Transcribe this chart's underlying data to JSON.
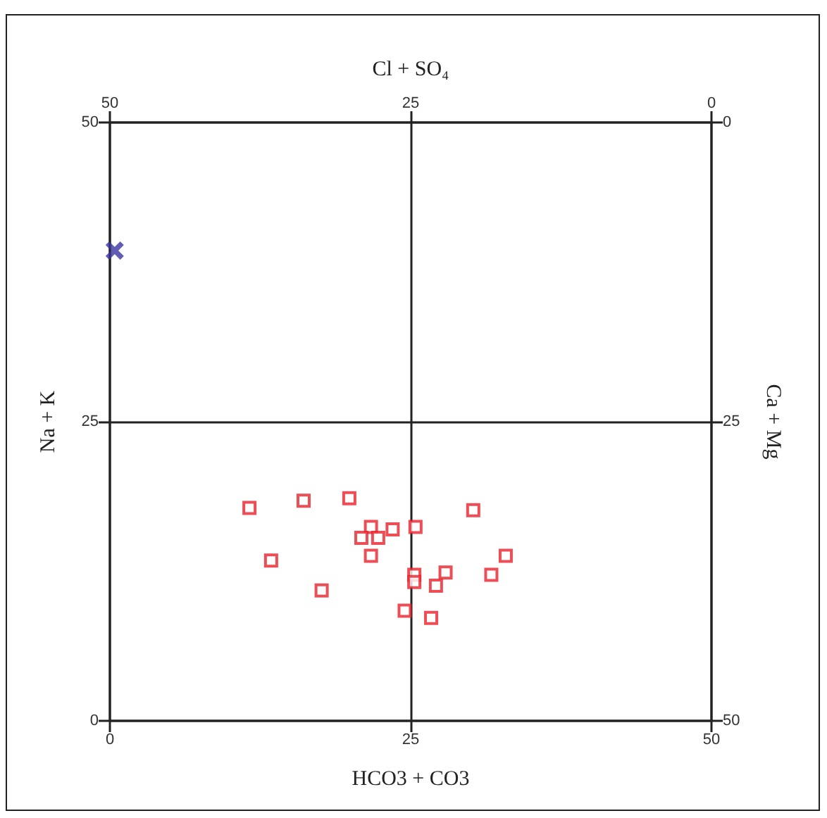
{
  "chart_data": {
    "type": "scatter",
    "xlabel": "HCO3 + CO3",
    "ylabel": "Na + K",
    "x2label": "Cl + SO₄",
    "y2label": "Ca + Mg",
    "xlim": [
      0,
      50
    ],
    "xticks": [
      0,
      25,
      50
    ],
    "ylim": [
      0,
      50
    ],
    "yticks": [
      0,
      25,
      50
    ],
    "x2lim": [
      50,
      0
    ],
    "x2ticks": [
      50,
      25,
      0
    ],
    "y2lim": [
      50,
      0
    ],
    "y2ticks": [
      50,
      25,
      0
    ],
    "grid": true,
    "series": [
      {
        "color": "#e8202a",
        "marker": "square",
        "x": [
          11.6,
          16.1,
          19.9,
          30.2,
          21.7,
          20.9,
          22.3,
          23.5,
          25.4,
          13.4,
          21.7,
          32.9,
          25.3,
          25.3,
          27.9,
          27.1,
          31.7,
          17.6,
          24.5,
          26.7
        ],
        "values": [
          17.8,
          18.4,
          18.6,
          17.6,
          16.2,
          15.3,
          15.3,
          16.0,
          16.2,
          13.4,
          13.8,
          13.8,
          12.2,
          11.6,
          12.4,
          11.3,
          12.2,
          10.9,
          9.2,
          8.6
        ]
      },
      {
        "color": "#3a35a0",
        "marker": "cross",
        "x": [
          0.4
        ],
        "values": [
          39.3
        ]
      }
    ]
  }
}
